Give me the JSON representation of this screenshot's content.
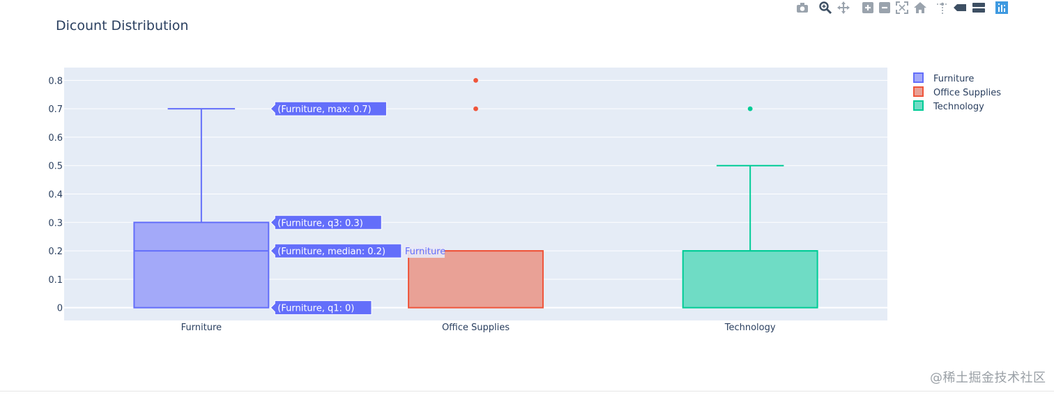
{
  "toolbar": {
    "items": [
      {
        "name": "camera-icon",
        "label": "Download plot as a png"
      },
      {
        "name": "zoom-icon",
        "label": "Zoom"
      },
      {
        "name": "pan-icon",
        "label": "Pan"
      },
      {
        "name": "zoom-in-icon",
        "label": "Zoom in"
      },
      {
        "name": "zoom-out-icon",
        "label": "Zoom out"
      },
      {
        "name": "autoscale-icon",
        "label": "Autoscale"
      },
      {
        "name": "home-icon",
        "label": "Reset axes"
      },
      {
        "name": "spike-lines-icon",
        "label": "Toggle Spike Lines"
      },
      {
        "name": "hover-closest-icon",
        "label": "Show closest data on hover"
      },
      {
        "name": "hover-compare-icon",
        "label": "Compare data on hover"
      },
      {
        "name": "plotly-logo-icon",
        "label": "Produced with Plotly"
      }
    ],
    "colors": {
      "icon": "#9aa3ad",
      "active": "#3d4f63",
      "logo": "#3f9ae0"
    }
  },
  "chart_data": {
    "type": "box",
    "title": "Dicount Distribution",
    "xlabel": "",
    "ylabel": "",
    "categories": [
      "Furniture",
      "Office Supplies",
      "Technology"
    ],
    "ylim": [
      -0.045,
      0.845
    ],
    "yticks": [
      0,
      0.1,
      0.2,
      0.3,
      0.4,
      0.5,
      0.6,
      0.7,
      0.8
    ],
    "ytick_labels": [
      "0",
      "0.1",
      "0.2",
      "0.3",
      "0.4",
      "0.5",
      "0.6",
      "0.7",
      "0.8"
    ],
    "grid": true,
    "legend_position": "top-right",
    "series": [
      {
        "name": "Furniture",
        "category": "Furniture",
        "min": 0,
        "q1": 0,
        "median": 0.2,
        "q3": 0.3,
        "max": 0.7,
        "outliers": [],
        "color": "#636efa",
        "fill": "#a3a9f9"
      },
      {
        "name": "Office Supplies",
        "category": "Office Supplies",
        "min": 0,
        "q1": 0,
        "median": 0.2,
        "q3": 0.2,
        "max": 0.2,
        "outliers": [
          0.7,
          0.8
        ],
        "color": "#ef553b",
        "fill": "#e9a196"
      },
      {
        "name": "Technology",
        "category": "Technology",
        "min": 0,
        "q1": 0,
        "median": 0.2,
        "q3": 0.2,
        "max": 0.5,
        "outliers": [
          0.7
        ],
        "color": "#00cc96",
        "fill": "#6fdcc5"
      }
    ],
    "hover": {
      "trace": "Furniture",
      "trace_label": "Furniture",
      "labels": [
        {
          "value": 0.7,
          "text": "(Furniture, max: 0.7)"
        },
        {
          "value": 0.3,
          "text": "(Furniture, q3: 0.3)"
        },
        {
          "value": 0.2,
          "text": "(Furniture, median: 0.2)"
        },
        {
          "value": 0,
          "text": "(Furniture, q1: 0)"
        }
      ]
    },
    "colors": {
      "plot_bg": "#e5ecf6",
      "grid": "#ffffff",
      "text": "#2a3f5f",
      "hover_bg": "#636efa"
    }
  },
  "watermark": "@稀土掘金技术社区"
}
